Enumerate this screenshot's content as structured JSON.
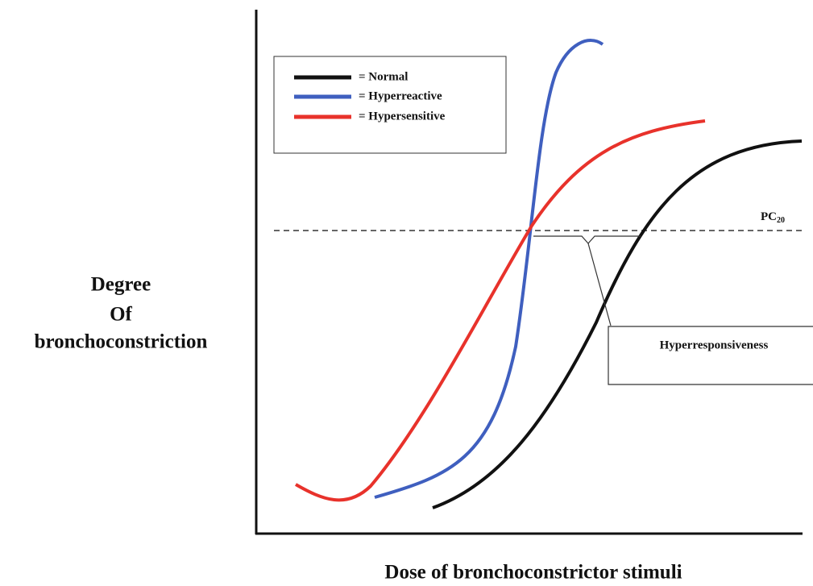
{
  "y_axis_label": [
    "Degree",
    "Of",
    "bronchoconstriction"
  ],
  "x_axis_label": "Dose of bronchoconstrictor stimuli",
  "legend": [
    "= Normal",
    "= Hyperreactive",
    "= Hypersensitive"
  ],
  "threshold": {
    "label": "PC",
    "subscript": "20"
  },
  "callout": "Hyperresponsiveness"
}
